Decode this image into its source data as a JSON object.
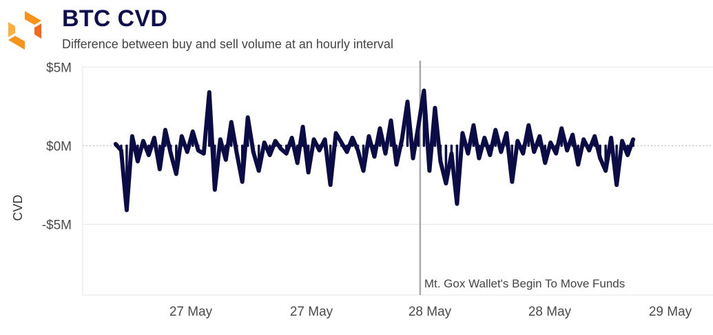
{
  "header": {
    "title": "BTC CVD",
    "subtitle": "Difference between buy and sell volume at an hourly interval"
  },
  "colors": {
    "series": "#0b0b45",
    "brand_orange": "#f7931a",
    "brand_orange_dark": "#f26a21",
    "marker_line": "#a8a8a8",
    "grid": "#e6e6e6"
  },
  "chart_data": {
    "type": "line",
    "title": "BTC CVD",
    "subtitle": "Difference between buy and sell volume at an hourly interval",
    "xlabel": "",
    "ylabel": "CVD",
    "x_unit": "hours since 26 May 00:00 (hourly interval)",
    "xlim": [
      -20,
      92
    ],
    "ylim": [
      -9.5,
      5.1
    ],
    "yticks": [
      {
        "value": 5,
        "label": "$5M"
      },
      {
        "value": 0,
        "label": "$0M"
      },
      {
        "value": -5,
        "label": "-$5M"
      }
    ],
    "xticks": [
      {
        "value": 12,
        "label": "27 May"
      },
      {
        "value": 36,
        "label": "27 May"
      },
      {
        "value": 60,
        "label": "28 May"
      },
      {
        "value": 84,
        "label": "28 May"
      },
      {
        "value": 108,
        "label": "29 May"
      }
    ],
    "grid": true,
    "annotations": [
      {
        "x": 41.3,
        "text": "Mt. Gox Wallet's Begin To Move Funds",
        "type": "vertical-line"
      }
    ],
    "series": [
      {
        "name": "CVD",
        "points": [
          [
            -14,
            0.1
          ],
          [
            -13,
            -0.3
          ],
          [
            -12,
            -4.1
          ],
          [
            -11,
            0.6
          ],
          [
            -10,
            -1.0
          ],
          [
            -9,
            0.3
          ],
          [
            -8,
            -0.6
          ],
          [
            -7,
            0.5
          ],
          [
            -6,
            -1.5
          ],
          [
            -5,
            1.0
          ],
          [
            -4,
            -0.5
          ],
          [
            -3,
            -1.8
          ],
          [
            -2,
            0.6
          ],
          [
            -1,
            -0.4
          ],
          [
            0,
            0.9
          ],
          [
            1,
            -0.3
          ],
          [
            2,
            -0.5
          ],
          [
            3,
            3.4
          ],
          [
            4,
            -2.8
          ],
          [
            5,
            0.4
          ],
          [
            6,
            -0.9
          ],
          [
            7,
            1.5
          ],
          [
            8,
            -0.5
          ],
          [
            9,
            -2.3
          ],
          [
            10,
            1.8
          ],
          [
            11,
            -0.4
          ],
          [
            12,
            -1.6
          ],
          [
            13,
            0.2
          ],
          [
            14,
            -0.6
          ],
          [
            15,
            0.3
          ],
          [
            16,
            -0.2
          ],
          [
            17,
            -0.5
          ],
          [
            18,
            0.5
          ],
          [
            19,
            -1.1
          ],
          [
            20,
            1.2
          ],
          [
            21,
            -1.7
          ],
          [
            22,
            0.4
          ],
          [
            23,
            -0.3
          ],
          [
            24,
            0.4
          ],
          [
            25,
            -2.5
          ],
          [
            26,
            0.8
          ],
          [
            27,
            0.2
          ],
          [
            28,
            -0.4
          ],
          [
            29,
            0.5
          ],
          [
            30,
            -0.3
          ],
          [
            31,
            -1.6
          ],
          [
            32,
            0.6
          ],
          [
            33,
            -0.7
          ],
          [
            34,
            1.1
          ],
          [
            35,
            -0.5
          ],
          [
            36,
            1.6
          ],
          [
            37,
            -1.2
          ],
          [
            38,
            0.4
          ],
          [
            39,
            2.8
          ],
          [
            40,
            -0.8
          ],
          [
            41,
            1.3
          ],
          [
            42,
            3.5
          ],
          [
            43,
            -1.6
          ],
          [
            44,
            2.4
          ],
          [
            45,
            -1.0
          ],
          [
            46,
            -2.4
          ],
          [
            47,
            -0.5
          ],
          [
            48,
            -3.7
          ],
          [
            49,
            0.8
          ],
          [
            50,
            -0.5
          ],
          [
            51,
            1.3
          ],
          [
            52,
            -0.8
          ],
          [
            53,
            0.5
          ],
          [
            54,
            -0.6
          ],
          [
            55,
            1.0
          ],
          [
            56,
            -0.4
          ],
          [
            57,
            0.8
          ],
          [
            58,
            -2.3
          ],
          [
            59,
            0.3
          ],
          [
            60,
            -0.5
          ],
          [
            61,
            1.3
          ],
          [
            62,
            -0.4
          ],
          [
            63,
            0.6
          ],
          [
            64,
            -1.1
          ],
          [
            65,
            0.2
          ],
          [
            66,
            -0.5
          ],
          [
            67,
            1.1
          ],
          [
            68,
            -0.3
          ],
          [
            69,
            0.7
          ],
          [
            70,
            -1.2
          ],
          [
            71,
            0.4
          ],
          [
            72,
            -0.3
          ],
          [
            73,
            0.6
          ],
          [
            74,
            -0.8
          ],
          [
            75,
            -1.6
          ],
          [
            76,
            0.5
          ],
          [
            77,
            -2.5
          ],
          [
            78,
            0.3
          ],
          [
            79,
            -0.6
          ],
          [
            80,
            0.4
          ]
        ]
      }
    ]
  }
}
